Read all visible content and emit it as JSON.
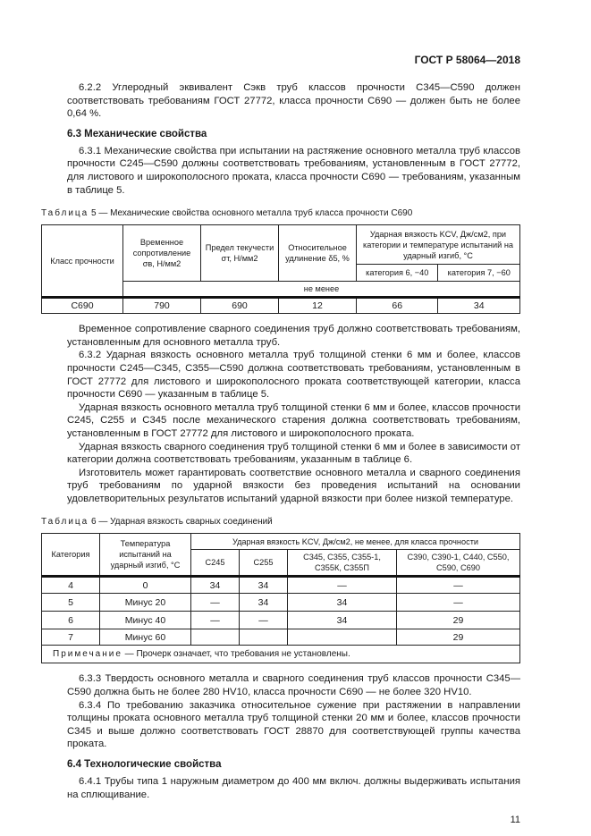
{
  "header": "ГОСТ Р 58064—2018",
  "p622": "6.2.2 Углеродный эквивалент Cэкв труб классов прочности С345—С590 должен соответствовать требованиям ГОСТ 27772, класса прочности С690 — должен быть не более 0,64 %.",
  "h63": "6.3 Механические свойства",
  "p631": "6.3.1 Механические свойства при испытании на растяжение основного металла труб классов прочности С245—С590 должны соответствовать требованиям, установленным в ГОСТ 27772, для листового и широкополосного проката, класса прочности С690 — требованиям, указанным в таблице 5.",
  "t5": {
    "cap_word": "Таблица",
    "cap": " 5 — Механические свойства основного металла труб класса прочности С690",
    "h": [
      "Класс прочности",
      "Временное сопротивление σв, Н/мм2",
      "Предел текучести σт, Н/мм2",
      "Относительное удлинение δ5, %",
      "Ударная вязкость KCV, Дж/см2, при категории и температуре испытаний на ударный изгиб, °С",
      "категория 6, −40",
      "категория 7, −60",
      "не менее"
    ],
    "row": [
      "С690",
      "790",
      "690",
      "12",
      "66",
      "34"
    ]
  },
  "paras1": [
    "Временное сопротивление сварного соединения труб должно соответствовать требованиям, установленным для основного металла труб.",
    "6.3.2 Ударная вязкость основного металла труб толщиной стенки 6 мм и более, классов прочности С245—С345, С355—С590 должна соответствовать требованиям, установленным в ГОСТ 27772 для листового и широкополосного проката соответствующей категории, класса прочности С690 — указанным в таблице 5.",
    "Ударная вязкость основного металла труб толщиной стенки 6 мм и более, классов прочности С245, С255 и С345 после механического старения должна соответствовать требованиям, установленным в ГОСТ 27772 для листового и широкополосного проката.",
    "Ударная вязкость сварного соединения труб толщиной стенки 6 мм и более в зависимости от категории должна соответствовать требованиям, указанным в таблице 6.",
    "Изготовитель может гарантировать соответствие основного металла и сварного соединения труб требованиям по ударной вязкости без проведения испытаний на основании удовлетворительных результатов испытаний ударной вязкости при более низкой температуре."
  ],
  "t6": {
    "cap_word": "Таблица",
    "cap": " 6 — Ударная вязкость сварных соединений",
    "h": [
      "Категория",
      "Температура испытаний на ударный изгиб, °С",
      "Ударная вязкость KCV, Дж/см2, не менее, для класса прочности",
      "С245",
      "С255",
      "С345, С355, С355-1, С355К, С355П",
      "С390, С390-1, С440, С550, С590, С690"
    ],
    "rows": [
      [
        "4",
        "0",
        "34",
        "34",
        "—",
        "—"
      ],
      [
        "5",
        "Минус 20",
        "—",
        "34",
        "34",
        "—"
      ],
      [
        "6",
        "Минус 40",
        "—",
        "—",
        "34",
        "29"
      ],
      [
        "7",
        "Минус 60",
        "",
        "",
        "",
        "29"
      ]
    ],
    "note_word": "Примечание",
    "note": " — Прочерк означает, что требования не установлены."
  },
  "paras2": [
    "6.3.3 Твердость основного металла и сварного соединения труб классов прочности С345—С590 должна быть не более 280 HV10, класса прочности С690 — не более 320 HV10.",
    "6.3.4 По требованию заказчика относительное сужение при растяжении в направлении толщины проката основного металла труб толщиной стенки 20 мм и более, классов прочности С345 и выше должно соответствовать ГОСТ 28870 для соответствующей группы качества проката."
  ],
  "h64": "6.4 Технологические свойства",
  "p641": "6.4.1 Трубы типа 1 наружным диаметром до 400 мм включ. должны выдерживать испытания на сплющивание.",
  "page": "11"
}
